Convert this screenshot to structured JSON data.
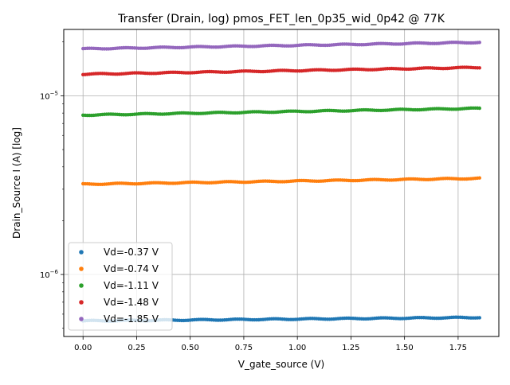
{
  "chart_data": {
    "type": "scatter",
    "title": "Transfer (Drain, log) pmos_FET_len_0p35_wid_0p42 @ 77K",
    "xlabel": "V_gate_source (V)",
    "ylabel": "Drain_Source I (A) [log]",
    "xlim": [
      -0.09,
      1.94
    ],
    "ylim": [
      4.5e-07,
      2.35e-05
    ],
    "yscale": "log",
    "grid": true,
    "legend_position": "lower-left",
    "x_ticks": [
      0.0,
      0.25,
      0.5,
      0.75,
      1.0,
      1.25,
      1.5,
      1.75
    ],
    "x_tick_labels": [
      "0.00",
      "0.25",
      "0.50",
      "0.75",
      "1.00",
      "1.25",
      "1.50",
      "1.75"
    ],
    "y_major_ticks": [
      1e-06,
      1e-05
    ],
    "y_tick_labels": [
      {
        "base": "10",
        "exp": "−6"
      },
      {
        "base": "10",
        "exp": "−5"
      }
    ],
    "x_range": {
      "start": 0.0,
      "end": 1.85,
      "step": 0.01
    },
    "series": [
      {
        "name": "Vd=-0.37 V",
        "color": "#1f77b4",
        "i_start": 5.5e-07,
        "i_end": 5.75e-07
      },
      {
        "name": "Vd=-0.74 V",
        "color": "#ff7f0e",
        "i_start": 3.2e-06,
        "i_end": 3.45e-06
      },
      {
        "name": "Vd=-1.11 V",
        "color": "#2ca02c",
        "i_start": 7.8e-06,
        "i_end": 8.5e-06
      },
      {
        "name": "Vd=-1.48 V",
        "color": "#d62728",
        "i_start": 1.32e-05,
        "i_end": 1.44e-05
      },
      {
        "name": "Vd=-1.85 V",
        "color": "#9467bd",
        "i_start": 1.83e-05,
        "i_end": 1.99e-05
      }
    ]
  }
}
